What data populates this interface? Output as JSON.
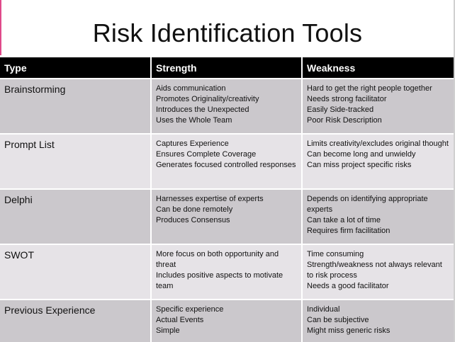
{
  "title": "Risk Identification Tools",
  "headers": {
    "type": "Type",
    "strength": "Strength",
    "weakness": "Weakness"
  },
  "rows": [
    {
      "type": "Brainstorming",
      "strengths": [
        "Aids communication",
        "Promotes Originality/creativity",
        "Introduces the Unexpected",
        "Uses the Whole Team"
      ],
      "weaknesses": [
        "Hard to get the right people together",
        "Needs strong facilitator",
        "Easily Side-tracked",
        "Poor Risk Description"
      ]
    },
    {
      "type": "Prompt List",
      "strengths": [
        "Captures Experience",
        "Ensures Complete Coverage",
        "Generates focused controlled responses"
      ],
      "weaknesses": [
        "Limits creativity/excludes original thought",
        "Can become long and unwieldy",
        "Can miss project specific risks"
      ]
    },
    {
      "type": "Delphi",
      "strengths": [
        "Harnesses expertise of experts",
        "Can be done remotely",
        "Produces Consensus"
      ],
      "weaknesses": [
        "Depends on identifying appropriate experts",
        "Can take a lot of time",
        "Requires firm facilitation"
      ]
    },
    {
      "type": "SWOT",
      "strengths": [
        "More focus on both opportunity and threat",
        "Includes positive aspects to motivate team"
      ],
      "weaknesses": [
        "Time consuming",
        "Strength/weakness not always relevant to risk process",
        "Needs a good facilitator"
      ]
    },
    {
      "type": "Previous Experience",
      "strengths": [
        "Specific experience",
        "Actual Events",
        "Simple"
      ],
      "weaknesses": [
        "Individual",
        "Can be subjective",
        "Might miss generic risks"
      ]
    }
  ]
}
